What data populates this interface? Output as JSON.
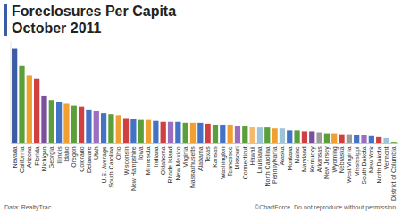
{
  "chart_data": {
    "type": "bar",
    "title": "Foreclosures Per Capita",
    "subtitle": "October 2011",
    "annotations": [
      "Data: RealtyTrac",
      "©ChartForce  Do not reproduce without permission."
    ],
    "categories": [
      "Nevada",
      "California",
      "Arizona",
      "Florida",
      "Michigan",
      "Georgia",
      "Illinois",
      "Idaho",
      "Oregon",
      "Colorado",
      "Delaware",
      "Utah",
      "U.S. Average",
      "South Carolina",
      "Ohio",
      "Wisconsin",
      "New Hampshire",
      "Iowa",
      "Minnesota",
      "Indiana",
      "Oklahoma",
      "Rhode Island",
      "New Mexico",
      "Virginia",
      "Massachusetts",
      "Alabama",
      "Texas",
      "Kansas",
      "Washington",
      "Tennessee",
      "Missouri",
      "Connecticut",
      "Hawaii",
      "Louisiana",
      "North Carolina",
      "Pennsylvania",
      "Alaska",
      "Montana",
      "Maine",
      "Maryland",
      "Kentucky",
      "Arkansas",
      "New Jersey",
      "Wyoming",
      "Nebraska",
      "West Virginia",
      "Mississippi",
      "South Dakota",
      "New York",
      "North Dakota",
      "Vermont",
      "District of Columbia"
    ],
    "values": [
      100,
      82,
      72,
      68,
      50,
      46,
      44,
      42,
      40,
      39,
      36,
      35,
      32,
      31,
      30,
      27,
      26,
      25,
      25,
      24,
      23,
      23,
      23,
      22,
      22,
      22,
      21,
      20,
      20,
      20,
      19,
      19,
      18,
      17,
      17,
      16,
      16,
      14,
      14,
      13,
      13,
      12,
      11,
      11,
      10,
      10,
      9,
      9,
      8,
      7,
      6,
      2
    ],
    "colors": [
      "#3B5BA5",
      "#5B9E3A",
      "#F0A030",
      "#D04040",
      "#7B4FA0",
      "#5B9E3A",
      "#4472C4",
      "#F0A030",
      "#5B9E3A",
      "#D04040",
      "#4472C4",
      "#9B6EC0",
      "#4472C4",
      "#5B9E3A",
      "#F0A030",
      "#D04040",
      "#4472C4",
      "#5B9E3A",
      "#F0A030",
      "#4472C4",
      "#D04040",
      "#9B6EC0",
      "#4472C4",
      "#5B9E3A",
      "#F0A030",
      "#4472C4",
      "#D04040",
      "#5B9E3A",
      "#4472C4",
      "#F0A030",
      "#9B6EC0",
      "#5B9E3A",
      "#F5B870",
      "#9BC4D8",
      "#5B9E3A",
      "#F0A030",
      "#9BC4D8",
      "#4472C4",
      "#5B9E3A",
      "#D04040",
      "#7B4FA0",
      "#9B9B9B",
      "#5B9E3A",
      "#F0A030",
      "#D04040",
      "#9B9B9B",
      "#4472C4",
      "#9B6EC0",
      "#4472C4",
      "#D04040",
      "#9BC4D8",
      "#5B9E3A"
    ],
    "ylim": [
      0,
      108
    ],
    "tick_labels": "x"
  }
}
